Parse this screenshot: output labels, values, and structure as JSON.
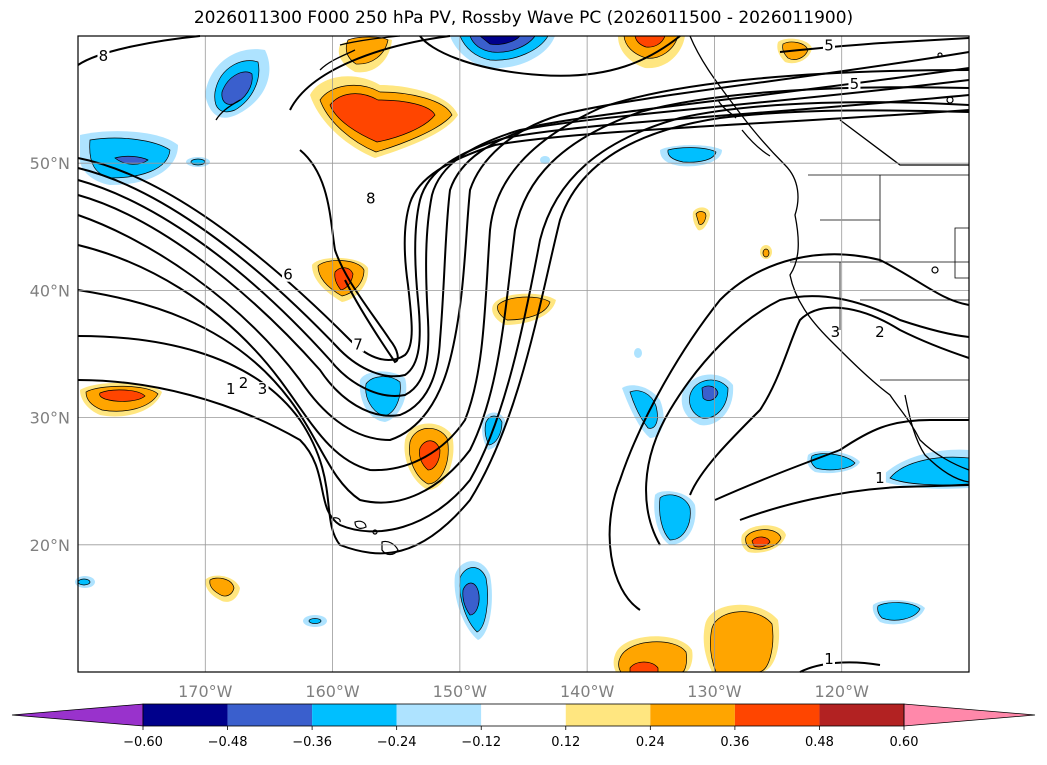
{
  "title": "2026011300 F000 250 hPa PV, Rossby Wave PC (2026011500 - 2026011900)",
  "map": {
    "lon_range": [
      -180,
      -110
    ],
    "lat_range": [
      10,
      60
    ],
    "lon_ticks": [
      {
        "lon": -170,
        "label": "170°W"
      },
      {
        "lon": -160,
        "label": "160°W"
      },
      {
        "lon": -150,
        "label": "150°W"
      },
      {
        "lon": -140,
        "label": "140°W"
      },
      {
        "lon": -130,
        "label": "130°W"
      },
      {
        "lon": -120,
        "label": "120°W"
      }
    ],
    "lat_ticks": [
      {
        "lat": 20,
        "label": "20°N"
      },
      {
        "lat": 30,
        "label": "30°N"
      },
      {
        "lat": 40,
        "label": "40°N"
      },
      {
        "lat": 50,
        "label": "50°N"
      }
    ],
    "grid": true,
    "contour_labels": [
      {
        "text": "8",
        "lon": -178,
        "lat": 58.2
      },
      {
        "text": "5",
        "lon": -121,
        "lat": 59
      },
      {
        "text": "5",
        "lon": -119,
        "lat": 56
      },
      {
        "text": "8",
        "lon": -157,
        "lat": 47
      },
      {
        "text": "6",
        "lon": -163.5,
        "lat": 41
      },
      {
        "text": "7",
        "lon": -158,
        "lat": 35.5
      },
      {
        "text": "1",
        "lon": -168,
        "lat": 32
      },
      {
        "text": "2",
        "lon": -167,
        "lat": 32.5
      },
      {
        "text": "3",
        "lon": -165.5,
        "lat": 32
      },
      {
        "text": "3",
        "lon": -120.5,
        "lat": 36.5
      },
      {
        "text": "2",
        "lon": -117,
        "lat": 36.5
      },
      {
        "text": "1",
        "lon": -117,
        "lat": 25
      },
      {
        "text": "1",
        "lon": -121,
        "lat": 10.8
      }
    ]
  },
  "colorbar": {
    "levels": [
      -0.6,
      -0.48,
      -0.36,
      -0.24,
      -0.12,
      0.12,
      0.24,
      0.36,
      0.48,
      0.6
    ],
    "tick_labels": [
      "−0.60",
      "−0.48",
      "−0.36",
      "−0.24",
      "−0.12",
      "0.12",
      "0.24",
      "0.36",
      "0.48",
      "0.60"
    ],
    "colors": [
      "#9932cc",
      "#00008b",
      "#3a5fcd",
      "#00bfff",
      "#aee3ff",
      "#ffffff",
      "#ffe680",
      "#ffa500",
      "#ff4500",
      "#b22222",
      "#ff88aa"
    ],
    "extend": "both"
  }
}
